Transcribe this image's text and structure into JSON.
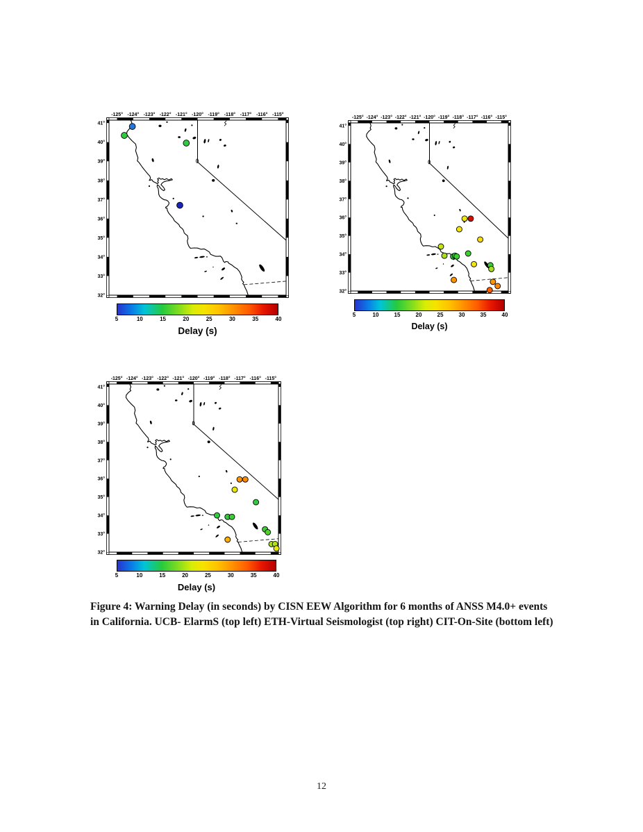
{
  "page_number": "12",
  "figure": {
    "caption_line1": "Figure 4: Warning Delay (in seconds) by CISN EEW Algorithm for 6 months of ANSS M4.0+ events",
    "caption_line2": "in California. UCB- ElarmS (top left) ETH-Virtual Seismologist (top right) CIT-On-Site (bottom left)"
  },
  "axis": {
    "lon_ticks": [
      "-125°",
      "-124°",
      "-123°",
      "-122°",
      "-121°",
      "-120°",
      "-119°",
      "-118°",
      "-117°",
      "-116°",
      "-115°"
    ],
    "lon_values": [
      -125,
      -124,
      -123,
      -122,
      -121,
      -120,
      -119,
      -118,
      -117,
      -116,
      -115
    ],
    "lat_ticks": [
      "41°",
      "40°",
      "39°",
      "38°",
      "37°",
      "36°",
      "35°",
      "34°",
      "33°",
      "32°"
    ],
    "lat_values": [
      41,
      40,
      39,
      38,
      37,
      36,
      35,
      34,
      33,
      32
    ]
  },
  "colorbar": {
    "label": "Delay (s)",
    "ticks": [
      "5",
      "10",
      "15",
      "20",
      "25",
      "30",
      "35",
      "40"
    ],
    "min": 5,
    "max": 40,
    "gradient": [
      "#2833cf 0%",
      "#0a7ce8 9%",
      "#00c4d8 17%",
      "#26ca3e 28%",
      "#7edc20 38%",
      "#d8ec06 47%",
      "#f6e300 54%",
      "#ffc300 63%",
      "#ff9400 72%",
      "#ff5c00 82%",
      "#e81600 91%",
      "#b30000 100%"
    ]
  },
  "chart_data": [
    {
      "type": "scatter",
      "name": "UCB-ElarmS",
      "position": "top-left",
      "x": "longitude (deg)",
      "y": "latitude (deg)",
      "x_range": [
        -125.5,
        -114.5
      ],
      "y_range": [
        32,
        41.15
      ],
      "color_scale": "Delay (s), 5 to 40, rainbow",
      "points": [
        {
          "lon": -124.55,
          "lat": 40.35,
          "delay_s": 15,
          "color": "#2ecc3e"
        },
        {
          "lon": -124.05,
          "lat": 40.82,
          "delay_s": 9,
          "color": "#2277dd"
        },
        {
          "lon": -120.7,
          "lat": 39.95,
          "delay_s": 15,
          "color": "#2ecc3e"
        },
        {
          "lon": -121.1,
          "lat": 36.7,
          "delay_s": 5,
          "color": "#1c24b8"
        }
      ]
    },
    {
      "type": "scatter",
      "name": "ETH-Virtual Seismologist",
      "position": "top-right",
      "x": "longitude (deg)",
      "y": "latitude (deg)",
      "x_range": [
        -125.5,
        -114.5
      ],
      "y_range": [
        32,
        41.15
      ],
      "color_scale": "Delay (s), 5 to 40, rainbow",
      "points": [
        {
          "lon": -117.55,
          "lat": 35.94,
          "delay_s": 24,
          "color": "#f2e40c"
        },
        {
          "lon": -117.12,
          "lat": 35.94,
          "delay_s": 38,
          "color": "#d40f00"
        },
        {
          "lon": -117.92,
          "lat": 35.36,
          "delay_s": 24,
          "color": "#f2e40c"
        },
        {
          "lon": -116.46,
          "lat": 34.8,
          "delay_s": 24,
          "color": "#fadc0a"
        },
        {
          "lon": -119.2,
          "lat": 34.42,
          "delay_s": 21,
          "color": "#c6e414"
        },
        {
          "lon": -118.96,
          "lat": 33.92,
          "delay_s": 20,
          "color": "#a6df1e"
        },
        {
          "lon": -118.35,
          "lat": 33.88,
          "delay_s": 16,
          "color": "#2ecc3e"
        },
        {
          "lon": -118.22,
          "lat": 33.92,
          "delay_s": 16,
          "color": "#2ecc3e"
        },
        {
          "lon": -118.1,
          "lat": 33.88,
          "delay_s": 17,
          "color": "#3bd032"
        },
        {
          "lon": -117.3,
          "lat": 34.04,
          "delay_s": 17,
          "color": "#3bd032"
        },
        {
          "lon": -116.9,
          "lat": 33.46,
          "delay_s": 24,
          "color": "#f2e40c"
        },
        {
          "lon": -115.75,
          "lat": 33.4,
          "delay_s": 17,
          "color": "#3bd032"
        },
        {
          "lon": -115.68,
          "lat": 33.2,
          "delay_s": 20,
          "color": "#a6df1e"
        },
        {
          "lon": -118.3,
          "lat": 32.6,
          "delay_s": 30,
          "color": "#ff9500"
        },
        {
          "lon": -115.57,
          "lat": 32.5,
          "delay_s": 30,
          "color": "#ff9500"
        },
        {
          "lon": -115.24,
          "lat": 32.27,
          "delay_s": 31,
          "color": "#ff8800"
        },
        {
          "lon": -115.8,
          "lat": 32.05,
          "delay_s": 33,
          "color": "#f85e00"
        }
      ]
    },
    {
      "type": "scatter",
      "name": "CIT-On-Site",
      "position": "bottom-left",
      "x": "longitude (deg)",
      "y": "latitude (deg)",
      "x_range": [
        -125.5,
        -114.5
      ],
      "y_range": [
        32,
        41.15
      ],
      "color_scale": "Delay (s), 5 to 40, rainbow",
      "points": [
        {
          "lon": -117.02,
          "lat": 35.96,
          "delay_s": 30,
          "color": "#ff9500"
        },
        {
          "lon": -116.65,
          "lat": 35.96,
          "delay_s": 31,
          "color": "#ff8800"
        },
        {
          "lon": -117.34,
          "lat": 35.4,
          "delay_s": 23,
          "color": "#e8e80a"
        },
        {
          "lon": -115.96,
          "lat": 34.72,
          "delay_s": 16,
          "color": "#2ecc3e"
        },
        {
          "lon": -118.49,
          "lat": 34.0,
          "delay_s": 16,
          "color": "#2ecc3e"
        },
        {
          "lon": -117.8,
          "lat": 33.92,
          "delay_s": 16,
          "color": "#2ecc3e"
        },
        {
          "lon": -117.52,
          "lat": 33.92,
          "delay_s": 17,
          "color": "#3bd032"
        },
        {
          "lon": -115.37,
          "lat": 33.24,
          "delay_s": 17,
          "color": "#3bd032"
        },
        {
          "lon": -115.19,
          "lat": 33.08,
          "delay_s": 18,
          "color": "#4fd42a"
        },
        {
          "lon": -117.8,
          "lat": 32.68,
          "delay_s": 28,
          "color": "#ffb000"
        },
        {
          "lon": -114.95,
          "lat": 32.44,
          "delay_s": 20,
          "color": "#a6df1e"
        },
        {
          "lon": -114.72,
          "lat": 32.44,
          "delay_s": 21,
          "color": "#b8e218"
        },
        {
          "lon": -114.63,
          "lat": 32.2,
          "delay_s": 23,
          "color": "#e8e80a"
        }
      ]
    }
  ]
}
